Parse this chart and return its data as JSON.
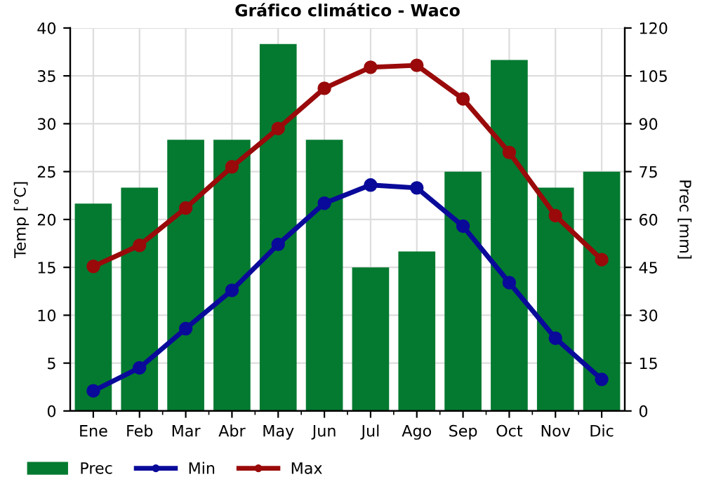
{
  "chart_data": {
    "type": "bar",
    "title": "Gráfico climático - Waco",
    "ylabel": "Temp [°C]",
    "y2label": "Prec [mm]",
    "categories": [
      "Ene",
      "Feb",
      "Mar",
      "Abr",
      "May",
      "Jun",
      "Jul",
      "Ago",
      "Sep",
      "Oct",
      "Nov",
      "Dic"
    ],
    "series": [
      {
        "name": "Prec",
        "axis": "y2",
        "color": "#047a30",
        "values": [
          65,
          70,
          85,
          85,
          115,
          85,
          45,
          50,
          75,
          110,
          70,
          75
        ]
      },
      {
        "name": "Min",
        "type": "line",
        "color": "#0a0a9a",
        "marker": "circle",
        "values": [
          2.1,
          4.5,
          8.6,
          12.6,
          17.4,
          21.7,
          23.6,
          23.3,
          19.3,
          13.4,
          7.6,
          3.3
        ]
      },
      {
        "name": "Max",
        "type": "line",
        "color": "#9a0a0a",
        "marker": "circle",
        "values": [
          15.1,
          17.3,
          21.2,
          25.5,
          29.5,
          33.7,
          35.9,
          36.1,
          32.6,
          27.0,
          20.4,
          15.8
        ]
      }
    ],
    "ylim": [
      0,
      40
    ],
    "yticks": [
      0,
      5,
      10,
      15,
      20,
      25,
      30,
      35,
      40
    ],
    "y2lim": [
      0,
      120
    ],
    "y2ticks": [
      0,
      15,
      30,
      45,
      60,
      75,
      90,
      105,
      120
    ],
    "grid": true,
    "legend": "bottom left"
  }
}
